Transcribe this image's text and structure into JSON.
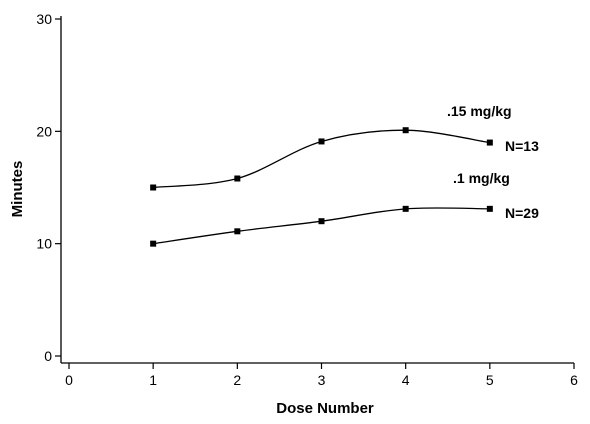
{
  "chart_data": {
    "type": "line",
    "xlabel": "Dose Number",
    "ylabel": "Minutes",
    "xlim": [
      0,
      6
    ],
    "ylim": [
      0,
      30
    ],
    "xticks": [
      "0",
      "1",
      "2",
      "3",
      "4",
      "5",
      "6"
    ],
    "yticks": [
      "0",
      "10",
      "20",
      "30"
    ],
    "grid": false,
    "series": [
      {
        "name": ".15 mg/kg",
        "count_label": "N=13",
        "x": [
          1,
          2,
          3,
          4,
          5
        ],
        "y": [
          15,
          15.8,
          19.1,
          20.1,
          19
        ]
      },
      {
        "name": ".1 mg/kg",
        "count_label": "N=29",
        "x": [
          1,
          2,
          3,
          4,
          5
        ],
        "y": [
          10,
          11.1,
          12,
          13.1,
          13.1
        ]
      }
    ]
  }
}
